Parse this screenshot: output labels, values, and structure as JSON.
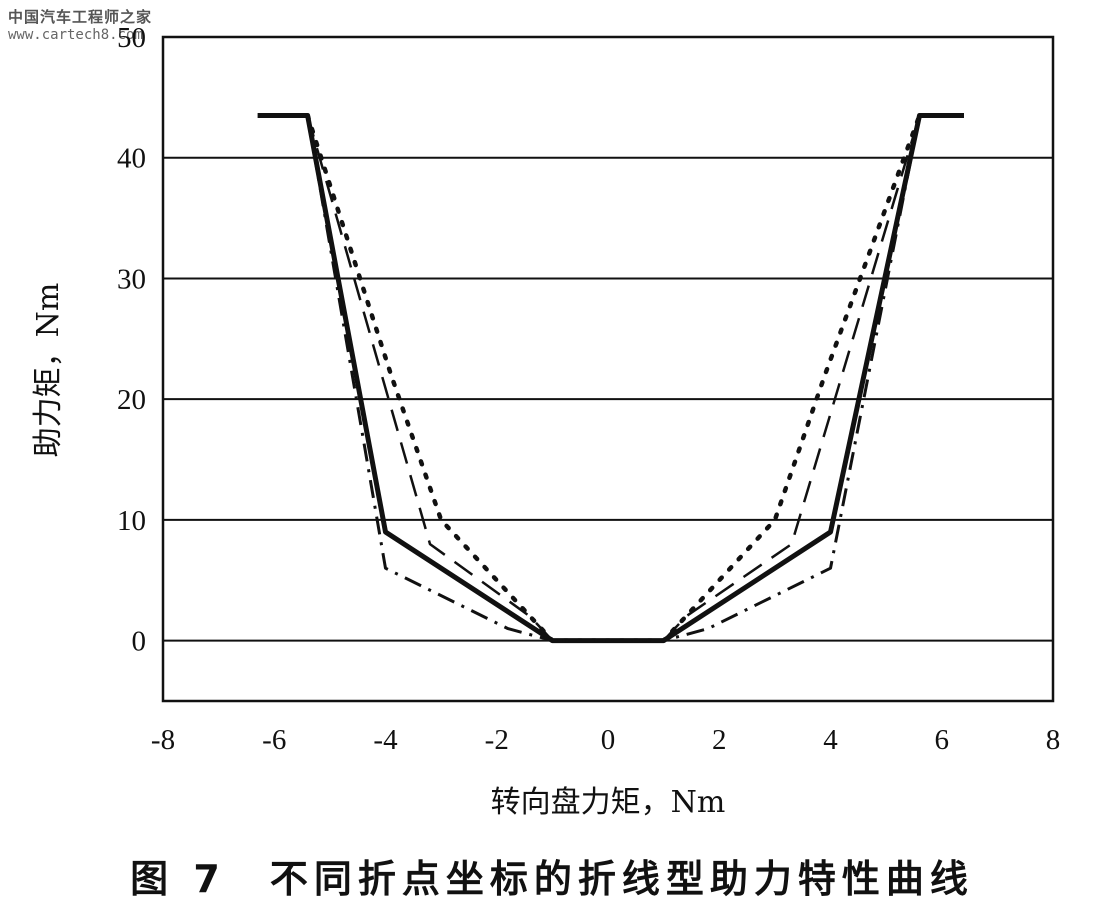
{
  "watermark": {
    "cn": "中国汽车工程师之家",
    "url": "www.cartech8.com"
  },
  "caption": "图 7　不同折点坐标的折线型助力特性曲线",
  "chart_data": {
    "type": "line",
    "xlabel": "转向盘力矩，Nm",
    "ylabel": "助力矩，Nm",
    "xlim": [
      -8,
      8
    ],
    "ylim": [
      -5,
      50
    ],
    "xticks": [
      -8,
      -6,
      -4,
      -2,
      0,
      2,
      4,
      6,
      8
    ],
    "yticks": [
      0,
      10,
      20,
      30,
      40,
      50
    ],
    "ytick_labels": [
      "0",
      "10",
      "20",
      "30",
      "40",
      "50"
    ],
    "grid": true,
    "legend": "none",
    "series": [
      {
        "style": "solid",
        "x": [
          -6.3,
          -5.4,
          -4.0,
          -1.0,
          1.0,
          4.0,
          5.6,
          6.4
        ],
        "y": [
          43.5,
          43.5,
          9.0,
          0,
          0,
          9.0,
          43.5,
          43.5
        ]
      },
      {
        "style": "dashed",
        "x": [
          -5.4,
          -3.2,
          -1.4,
          -1.0,
          1.0,
          1.4,
          3.3,
          5.6
        ],
        "y": [
          43.5,
          8.0,
          2.0,
          0,
          0,
          2.0,
          8.0,
          43.5
        ]
      },
      {
        "style": "dotted",
        "x": [
          -5.4,
          -3.9,
          -3.0,
          -1.0,
          1.0,
          3.0,
          3.9,
          5.6
        ],
        "y": [
          43.5,
          22.0,
          10.0,
          0,
          0,
          10.0,
          22.0,
          43.5
        ]
      },
      {
        "style": "dashdot",
        "x": [
          -5.4,
          -4.0,
          -1.8,
          -1.0,
          1.0,
          1.8,
          4.0,
          5.6
        ],
        "y": [
          43.5,
          6.0,
          1.0,
          0,
          0,
          1.0,
          6.0,
          43.5
        ]
      }
    ]
  }
}
